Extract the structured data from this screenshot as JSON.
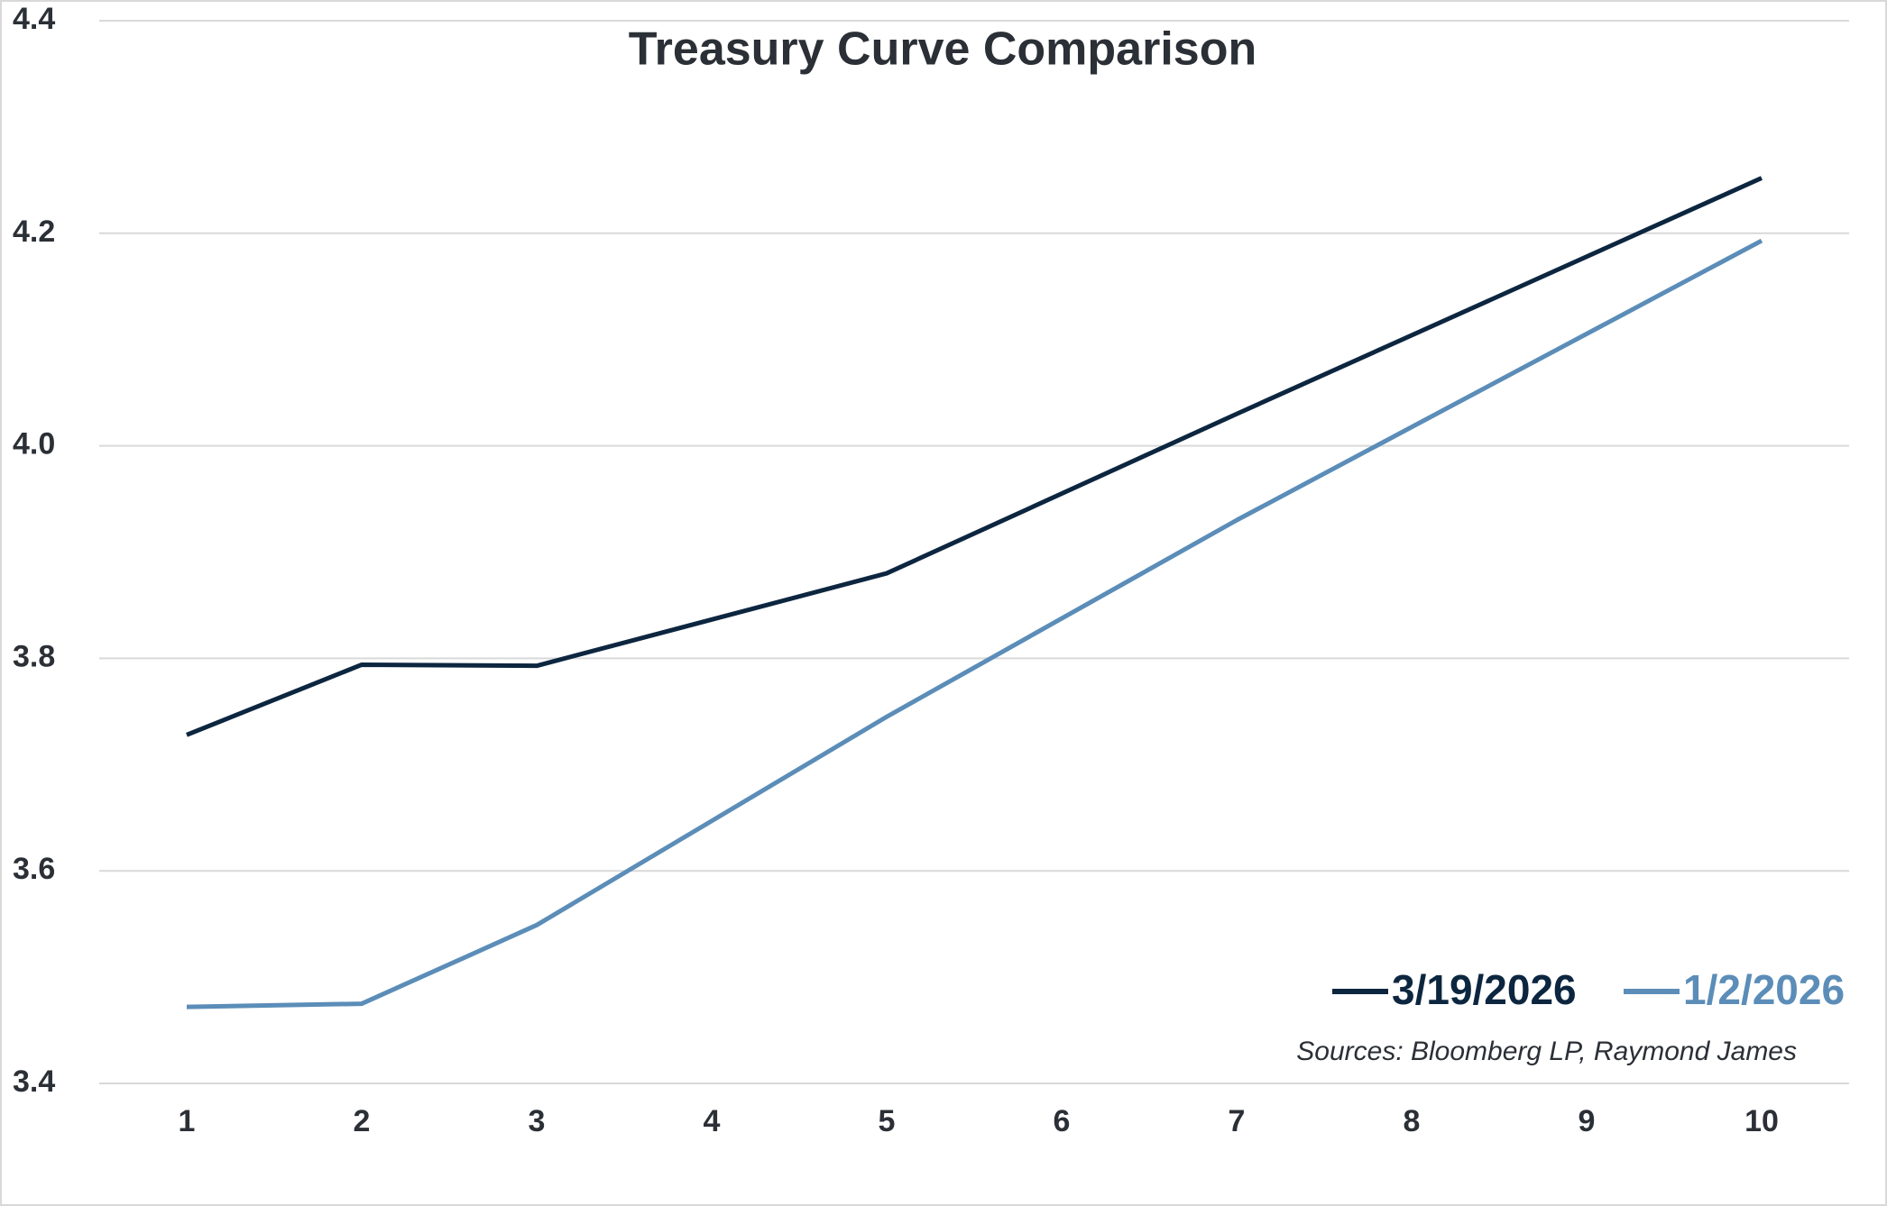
{
  "chart_data": {
    "type": "line",
    "title": "Treasury Curve Comparison",
    "x": [
      1,
      2,
      3,
      5,
      7,
      10
    ],
    "series": [
      {
        "name": "3/19/2026",
        "color": "#0d2640",
        "values": [
          3.728,
          3.794,
          3.793,
          3.88,
          4.03,
          4.252
        ]
      },
      {
        "name": "1/2/2026",
        "color": "#5b8db8",
        "values": [
          3.472,
          3.475,
          3.549,
          3.745,
          3.93,
          4.193
        ]
      }
    ],
    "xlim": [
      0.5,
      10.5
    ],
    "xticks": [
      1,
      2,
      3,
      4,
      5,
      6,
      7,
      8,
      9,
      10
    ],
    "ylim": [
      3.4,
      4.4
    ],
    "yticks": [
      {
        "value": 3.4,
        "label": "3.4"
      },
      {
        "value": 3.6,
        "label": "3.6"
      },
      {
        "value": 3.8,
        "label": "3.8"
      },
      {
        "value": 4.0,
        "label": "4.0"
      },
      {
        "value": 4.2,
        "label": "4.2"
      },
      {
        "value": 4.4,
        "label": "4.4"
      }
    ],
    "grid": true,
    "legend": "bottom-right",
    "source": "Sources: Bloomberg LP, Raymond James"
  }
}
